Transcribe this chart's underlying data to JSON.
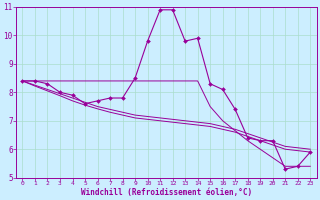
{
  "xlabel": "Windchill (Refroidissement éolien,°C)",
  "bg_color": "#cceeff",
  "line_color": "#990099",
  "grid_color": "#aaddcc",
  "xlim": [
    -0.5,
    23.5
  ],
  "ylim": [
    5,
    11
  ],
  "xticks": [
    0,
    1,
    2,
    3,
    4,
    5,
    6,
    7,
    8,
    9,
    10,
    11,
    12,
    13,
    14,
    15,
    16,
    17,
    18,
    19,
    20,
    21,
    22,
    23
  ],
  "yticks": [
    5,
    6,
    7,
    8,
    9,
    10,
    11
  ],
  "main_series": [
    8.4,
    8.4,
    8.3,
    8.0,
    7.9,
    7.6,
    7.7,
    7.8,
    7.8,
    8.5,
    9.8,
    10.9,
    10.9,
    9.8,
    9.9,
    8.3,
    8.1,
    7.4,
    6.4,
    6.3,
    6.3,
    5.3,
    5.4,
    5.9
  ],
  "flat_line": [
    8.4,
    8.4,
    8.4,
    8.4,
    8.4,
    8.4,
    8.4,
    8.4,
    8.4,
    8.4,
    8.4,
    8.4,
    8.4,
    8.4,
    8.4,
    7.5,
    7.0,
    6.65,
    6.3,
    6.0,
    5.7,
    5.4,
    5.4,
    5.4
  ],
  "reg_line1": [
    8.4,
    8.25,
    8.1,
    7.95,
    7.8,
    7.65,
    7.5,
    7.4,
    7.3,
    7.2,
    7.15,
    7.1,
    7.05,
    7.0,
    6.95,
    6.9,
    6.8,
    6.7,
    6.55,
    6.4,
    6.25,
    6.1,
    6.05,
    6.0
  ],
  "reg_line2": [
    8.4,
    8.22,
    8.05,
    7.88,
    7.7,
    7.55,
    7.42,
    7.3,
    7.2,
    7.1,
    7.05,
    7.0,
    6.95,
    6.9,
    6.85,
    6.8,
    6.7,
    6.6,
    6.45,
    6.3,
    6.15,
    6.0,
    5.95,
    5.9
  ]
}
